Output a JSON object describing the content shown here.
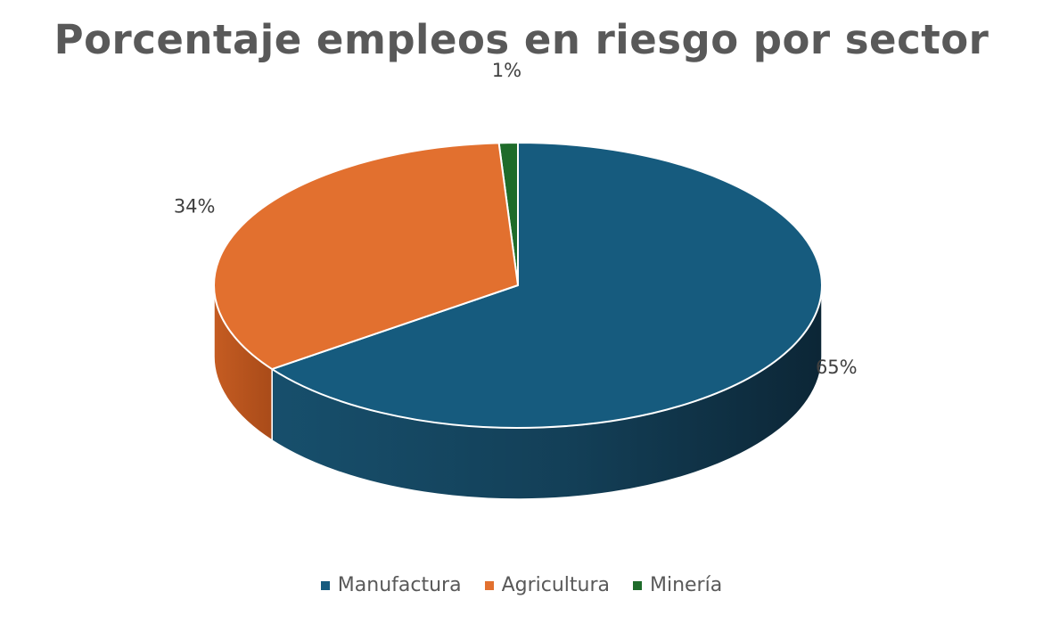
{
  "chart_data": {
    "type": "pie",
    "title": "Porcentaje empleos en riesgo por sector",
    "categories": [
      "Manufactura",
      "Agricultura",
      "Minería"
    ],
    "values": [
      65,
      34,
      1
    ],
    "data_labels": [
      "65%",
      "34%",
      "1%"
    ],
    "colors": [
      "#165B7E",
      "#E2702F",
      "#1E6B2A"
    ],
    "legend_position": "bottom",
    "style": "3d"
  }
}
